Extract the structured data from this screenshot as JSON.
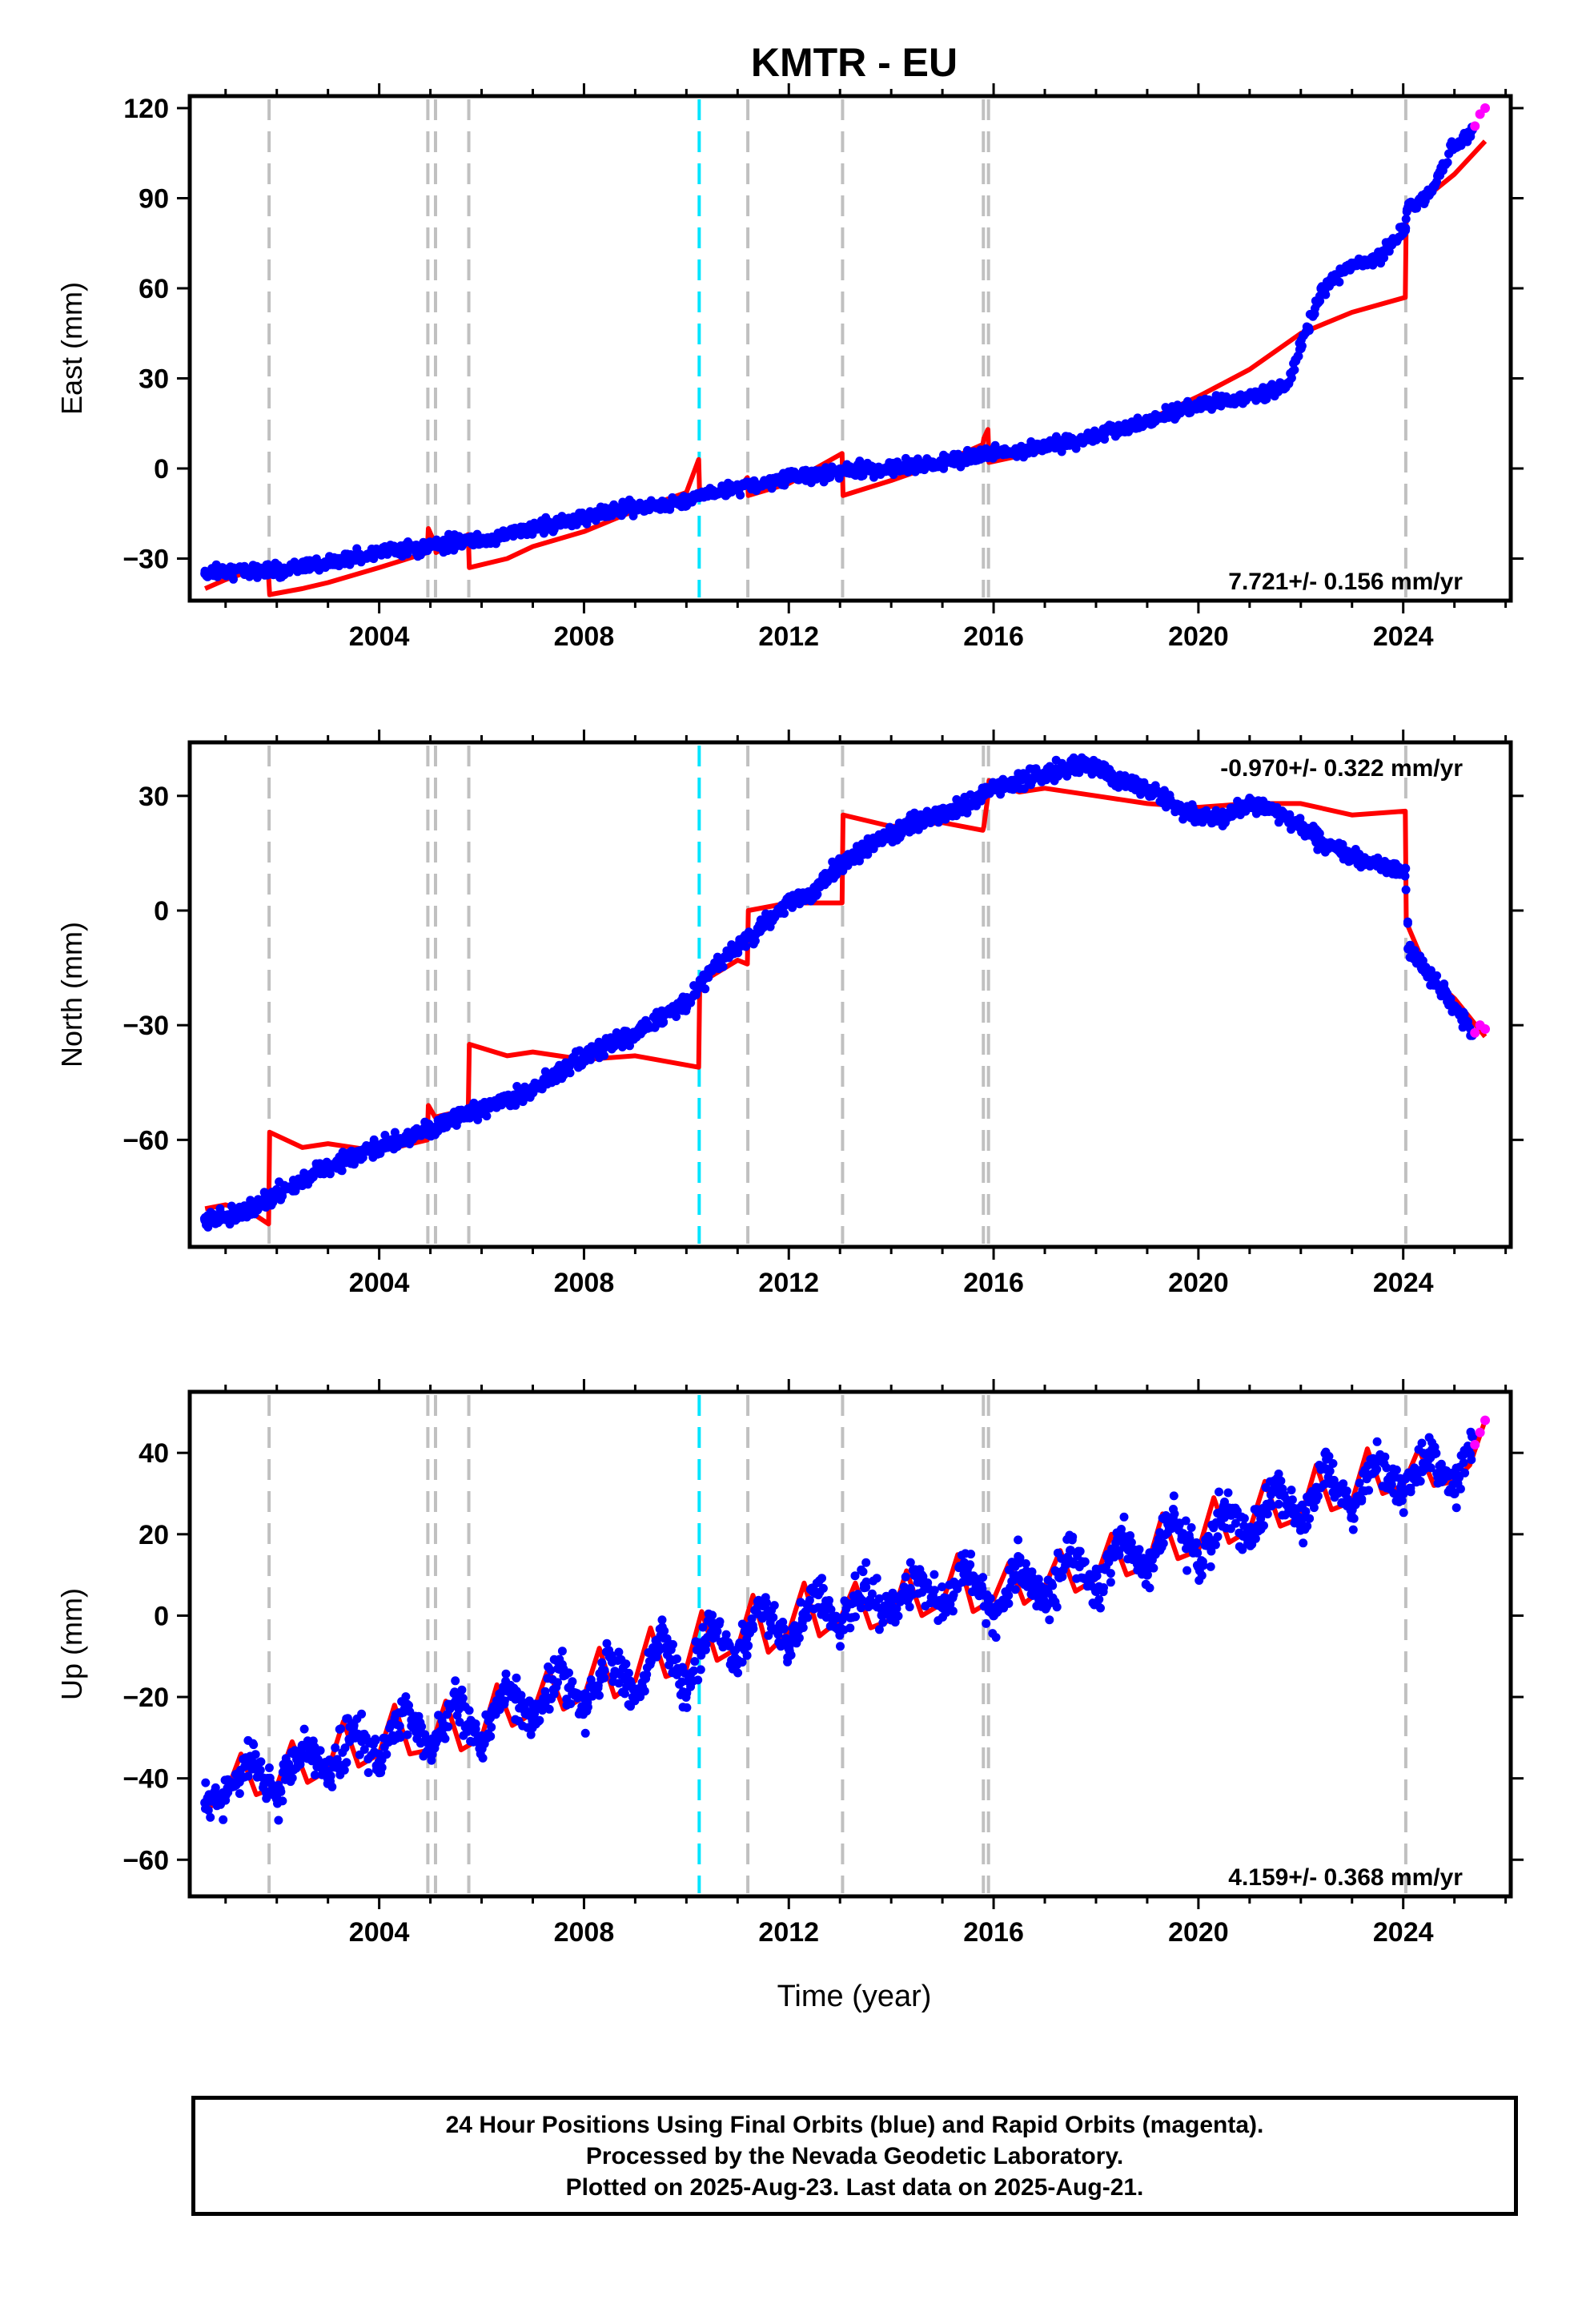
{
  "title": "KMTR - EU",
  "xlabel": "Time (year)",
  "footer": {
    "line1": "24 Hour Positions Using Final Orbits (blue) and Rapid Orbits (magenta).",
    "line2": "Processed by the Nevada Geodetic Laboratory.",
    "line3": "Plotted on 2025-Aug-23. Last data on 2025-Aug-21."
  },
  "colors": {
    "final_orbits": "#0000ff",
    "rapid_orbits": "#ff00ff",
    "model": "#ff0000",
    "event_line": "#c0c0c0",
    "highlight_event_line": "#00e5ff"
  },
  "chart_data": [
    {
      "type": "scatter",
      "panel": "east",
      "ylabel": "East (mm)",
      "rate_label": "7.721+/- 0.156 mm/yr",
      "rate_position": "bottom-right",
      "xlim": [
        2000.3,
        2026.1
      ],
      "ylim": [
        -44,
        124
      ],
      "x_ticks": [
        2004,
        2008,
        2012,
        2016,
        2020,
        2024
      ],
      "y_ticks": [
        -30,
        0,
        30,
        60,
        90,
        120
      ],
      "event_lines": [
        2001.85,
        2004.95,
        2005.1,
        2005.75,
        2011.2,
        2013.05,
        2015.8,
        2015.9,
        2024.05
      ],
      "highlight_event_lines": [
        2010.25
      ],
      "series": [
        {
          "name": "Final Orbits (blue)",
          "x": [
            2000.6,
            2001.0,
            2001.5,
            2001.84,
            2002.0,
            2003.0,
            2004.0,
            2005.0,
            2005.74,
            2006.0,
            2007.0,
            2008.0,
            2009.0,
            2010.0,
            2010.24,
            2010.5,
            2011.0,
            2011.5,
            2012.0,
            2013.0,
            2014.0,
            2015.0,
            2016.0,
            2017.0,
            2018.0,
            2019.0,
            2020.0,
            2021.0,
            2021.7,
            2022.0,
            2022.4,
            2023.0,
            2023.5,
            2024.0,
            2024.04,
            2024.1,
            2024.5,
            2025.0,
            2025.35
          ],
          "y": [
            -35,
            -34,
            -34,
            -33,
            -34,
            -31,
            -28,
            -26,
            -24,
            -24,
            -20,
            -16,
            -13,
            -11,
            -9,
            -8,
            -6,
            -5,
            -3,
            -1,
            0,
            2,
            5,
            7,
            11,
            16,
            21,
            24,
            27,
            40,
            60,
            68,
            70,
            79,
            80,
            87,
            91,
            108,
            113
          ]
        },
        {
          "name": "Rapid Orbits (magenta)",
          "x": [
            2025.4,
            2025.5,
            2025.6
          ],
          "y": [
            114,
            118,
            120
          ]
        },
        {
          "name": "Model",
          "x": [
            2000.6,
            2001.0,
            2001.5,
            2001.84,
            2001.86,
            2002.5,
            2003.0,
            2004.0,
            2004.94,
            2004.96,
            2005.09,
            2005.11,
            2005.74,
            2005.76,
            2006.5,
            2007.0,
            2008.0,
            2009.0,
            2010.0,
            2010.24,
            2010.26,
            2011.0,
            2011.19,
            2011.21,
            2012.0,
            2013.04,
            2013.06,
            2014.0,
            2015.0,
            2015.79,
            2015.81,
            2015.89,
            2015.91,
            2017.0,
            2018.0,
            2019.0,
            2020.0,
            2021.0,
            2022.0,
            2023.0,
            2024.04,
            2024.06,
            2025.0,
            2025.6
          ],
          "y": [
            -40,
            -37,
            -34,
            -36,
            -42,
            -40,
            -38,
            -33,
            -28,
            -20,
            -25,
            -28,
            -22,
            -33,
            -30,
            -26,
            -21,
            -14,
            -8,
            3,
            -10,
            -7,
            -3,
            -9,
            -5,
            5,
            -9,
            -4,
            2,
            8,
            10,
            13,
            2,
            6,
            11,
            16,
            24,
            33,
            45,
            52,
            57,
            85,
            98,
            109
          ]
        }
      ]
    },
    {
      "type": "scatter",
      "panel": "north",
      "ylabel": "North (mm)",
      "rate_label": "-0.970+/- 0.322 mm/yr",
      "rate_position": "top-right",
      "xlim": [
        2000.3,
        2026.1
      ],
      "ylim": [
        -88,
        44
      ],
      "x_ticks": [
        2004,
        2008,
        2012,
        2016,
        2020,
        2024
      ],
      "y_ticks": [
        -60,
        -30,
        0,
        30
      ],
      "event_lines": [
        2001.85,
        2004.95,
        2005.1,
        2005.75,
        2011.2,
        2013.05,
        2015.8,
        2015.9,
        2024.05
      ],
      "highlight_event_lines": [
        2010.25
      ],
      "series": [
        {
          "name": "Final Orbits (blue)",
          "x": [
            2000.6,
            2001.0,
            2001.5,
            2002.0,
            2003.0,
            2004.0,
            2005.0,
            2006.0,
            2007.0,
            2008.0,
            2009.0,
            2010.0,
            2010.5,
            2011.0,
            2011.5,
            2012.0,
            2012.5,
            2013.0,
            2013.5,
            2014.0,
            2014.5,
            2015.0,
            2015.5,
            2016.0,
            2016.5,
            2017.0,
            2017.5,
            2018.0,
            2018.5,
            2019.0,
            2019.5,
            2020.0,
            2020.5,
            2021.0,
            2021.5,
            2022.0,
            2022.5,
            2023.0,
            2023.5,
            2024.0,
            2024.04,
            2024.1,
            2024.5,
            2025.0,
            2025.35
          ],
          "y": [
            -81,
            -80,
            -78,
            -74,
            -67,
            -62,
            -57,
            -52,
            -47,
            -38,
            -32,
            -24,
            -15,
            -10,
            -4,
            2,
            5,
            12,
            16,
            20,
            23,
            25,
            28,
            32,
            34,
            36,
            37,
            38,
            34,
            32,
            28,
            25,
            24,
            28,
            26,
            22,
            17,
            14,
            12,
            10,
            11,
            -10,
            -17,
            -25,
            -32
          ]
        },
        {
          "name": "Rapid Orbits (magenta)",
          "x": [
            2025.4,
            2025.5,
            2025.6
          ],
          "y": [
            -32,
            -30,
            -31
          ]
        },
        {
          "name": "Model",
          "x": [
            2000.6,
            2001.0,
            2001.5,
            2001.84,
            2001.86,
            2002.5,
            2003.0,
            2004.0,
            2004.94,
            2004.96,
            2005.09,
            2005.11,
            2005.74,
            2005.76,
            2006.5,
            2007.0,
            2008.0,
            2009.0,
            2010.24,
            2010.26,
            2011.0,
            2011.19,
            2011.21,
            2012.0,
            2013.04,
            2013.06,
            2014.0,
            2015.0,
            2015.79,
            2015.81,
            2015.89,
            2015.91,
            2016.5,
            2017.0,
            2018.0,
            2019.0,
            2020.0,
            2021.0,
            2022.0,
            2023.0,
            2024.04,
            2024.06,
            2024.5,
            2025.0,
            2025.6
          ],
          "y": [
            -78,
            -77,
            -79,
            -82,
            -58,
            -62,
            -61,
            -63,
            -60,
            -51,
            -54,
            -54,
            -52,
            -35,
            -38,
            -37,
            -39,
            -38,
            -41,
            -19,
            -13,
            -14,
            0,
            2,
            2,
            25,
            22,
            23,
            21,
            22,
            30,
            34,
            31,
            32,
            30,
            28,
            27,
            28,
            28,
            25,
            26,
            -3,
            -17,
            -23,
            -33
          ]
        }
      ]
    },
    {
      "type": "scatter",
      "panel": "up",
      "ylabel": "Up (mm)",
      "rate_label": "4.159+/- 0.368 mm/yr",
      "rate_position": "bottom-right",
      "xlim": [
        2000.3,
        2026.1
      ],
      "ylim": [
        -69,
        55
      ],
      "x_ticks": [
        2004,
        2008,
        2012,
        2016,
        2020,
        2024
      ],
      "y_ticks": [
        -60,
        -40,
        -20,
        0,
        20,
        40
      ],
      "event_lines": [
        2001.85,
        2004.95,
        2005.1,
        2005.75,
        2011.2,
        2013.05,
        2015.8,
        2015.9,
        2024.05
      ],
      "highlight_event_lines": [
        2010.25
      ],
      "series": [
        {
          "name": "Final Orbits (blue)",
          "x": [
            2000.6,
            2001.0,
            2001.5,
            2002.0,
            2002.5,
            2003.0,
            2003.5,
            2004.0,
            2004.5,
            2005.0,
            2005.5,
            2006.0,
            2006.5,
            2007.0,
            2007.5,
            2008.0,
            2008.5,
            2009.0,
            2009.5,
            2010.0,
            2010.5,
            2011.0,
            2011.5,
            2012.0,
            2012.5,
            2013.0,
            2013.5,
            2014.0,
            2014.5,
            2015.0,
            2015.5,
            2016.0,
            2016.5,
            2017.0,
            2017.5,
            2018.0,
            2018.5,
            2019.0,
            2019.5,
            2020.0,
            2020.5,
            2021.0,
            2021.5,
            2022.0,
            2022.5,
            2023.0,
            2023.5,
            2024.0,
            2024.5,
            2025.0,
            2025.35
          ],
          "y": [
            -46,
            -44,
            -35,
            -45,
            -32,
            -40,
            -27,
            -36,
            -23,
            -34,
            -21,
            -31,
            -17,
            -26,
            -13,
            -23,
            -10,
            -20,
            -5,
            -19,
            -2,
            -11,
            3,
            -8,
            6,
            -3,
            7,
            -1,
            10,
            2,
            12,
            0,
            13,
            3,
            16,
            6,
            19,
            10,
            24,
            12,
            27,
            18,
            32,
            22,
            36,
            26,
            38,
            30,
            40,
            30,
            44
          ]
        },
        {
          "name": "Rapid Orbits (magenta)",
          "x": [
            2025.4,
            2025.5,
            2025.6
          ],
          "y": [
            42,
            45,
            48
          ]
        },
        {
          "name": "Model",
          "x": [
            2000.6,
            2001.0,
            2001.3,
            2001.6,
            2002.0,
            2002.3,
            2002.6,
            2003.0,
            2003.3,
            2003.6,
            2004.0,
            2004.3,
            2004.6,
            2005.0,
            2005.3,
            2005.6,
            2006.0,
            2006.3,
            2006.6,
            2007.0,
            2007.3,
            2007.6,
            2008.0,
            2008.3,
            2008.6,
            2009.0,
            2009.3,
            2009.6,
            2010.0,
            2010.3,
            2010.6,
            2011.0,
            2011.3,
            2011.6,
            2012.0,
            2012.3,
            2012.6,
            2013.0,
            2013.3,
            2013.6,
            2014.0,
            2014.3,
            2014.6,
            2015.0,
            2015.3,
            2015.6,
            2016.0,
            2016.3,
            2016.6,
            2017.0,
            2017.3,
            2017.6,
            2018.0,
            2018.3,
            2018.6,
            2019.0,
            2019.3,
            2019.6,
            2020.0,
            2020.3,
            2020.6,
            2021.0,
            2021.3,
            2021.6,
            2022.0,
            2022.3,
            2022.6,
            2023.0,
            2023.3,
            2023.6,
            2024.0,
            2024.3,
            2024.6,
            2025.0,
            2025.3,
            2025.6
          ],
          "y": [
            -48,
            -44,
            -34,
            -44,
            -42,
            -31,
            -41,
            -38,
            -26,
            -37,
            -34,
            -22,
            -34,
            -33,
            -21,
            -33,
            -30,
            -17,
            -27,
            -24,
            -13,
            -23,
            -20,
            -8,
            -20,
            -16,
            -3,
            -15,
            -13,
            1,
            -11,
            -8,
            5,
            -9,
            -4,
            8,
            -5,
            -1,
            8,
            -3,
            -1,
            11,
            0,
            3,
            15,
            1,
            4,
            13,
            3,
            7,
            16,
            6,
            9,
            20,
            10,
            12,
            25,
            14,
            16,
            29,
            18,
            21,
            33,
            22,
            24,
            37,
            26,
            28,
            41,
            30,
            32,
            41,
            32,
            33,
            37,
            48
          ]
        }
      ]
    }
  ]
}
